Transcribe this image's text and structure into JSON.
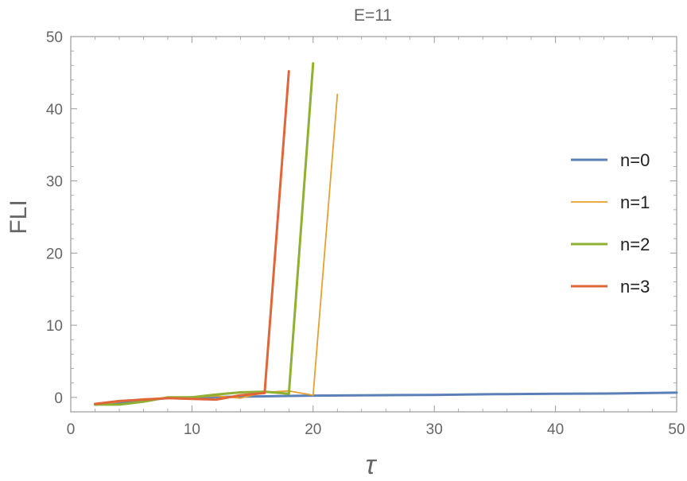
{
  "chart_data": {
    "type": "line",
    "title": "E=11",
    "xlabel": "τ",
    "ylabel": "FLI",
    "xlim": [
      0,
      50
    ],
    "ylim": [
      -2,
      50
    ],
    "xticks": [
      0,
      10,
      20,
      30,
      40,
      50
    ],
    "yticks": [
      0,
      10,
      20,
      30,
      40,
      50
    ],
    "legend_position": "right",
    "grid": false,
    "series": [
      {
        "name": "n=0",
        "color": "#5b80b7",
        "stroke": "thick",
        "x": [
          2,
          4,
          6,
          8,
          10,
          12,
          14,
          16,
          18,
          20,
          25,
          30,
          35,
          40,
          45,
          50
        ],
        "y": [
          -1,
          -0.8,
          -0.4,
          -0.1,
          0,
          0.05,
          0.1,
          0.15,
          0.2,
          0.25,
          0.3,
          0.35,
          0.45,
          0.5,
          0.55,
          0.65
        ]
      },
      {
        "name": "n=1",
        "color": "#e5a031",
        "stroke": "thin",
        "x": [
          2,
          4,
          6,
          8,
          10,
          12,
          14,
          16,
          18,
          20,
          22
        ],
        "y": [
          -1,
          -0.6,
          -0.2,
          -0.1,
          0,
          0.2,
          -0.1,
          0.7,
          0.9,
          0.3,
          42
        ]
      },
      {
        "name": "n=2",
        "color": "#8fb032",
        "stroke": "thick",
        "x": [
          2,
          4,
          6,
          8,
          10,
          12,
          14,
          16,
          18,
          20
        ],
        "y": [
          -1,
          -1,
          -0.6,
          0,
          0,
          0.4,
          0.7,
          0.8,
          0.5,
          46.3
        ]
      },
      {
        "name": "n=3",
        "color": "#e0663a",
        "stroke": "thick",
        "x": [
          2,
          4,
          6,
          8,
          10,
          12,
          14,
          16,
          18
        ],
        "y": [
          -0.9,
          -0.5,
          -0.3,
          -0.1,
          -0.2,
          -0.3,
          0.3,
          0.6,
          45.2
        ]
      }
    ]
  }
}
